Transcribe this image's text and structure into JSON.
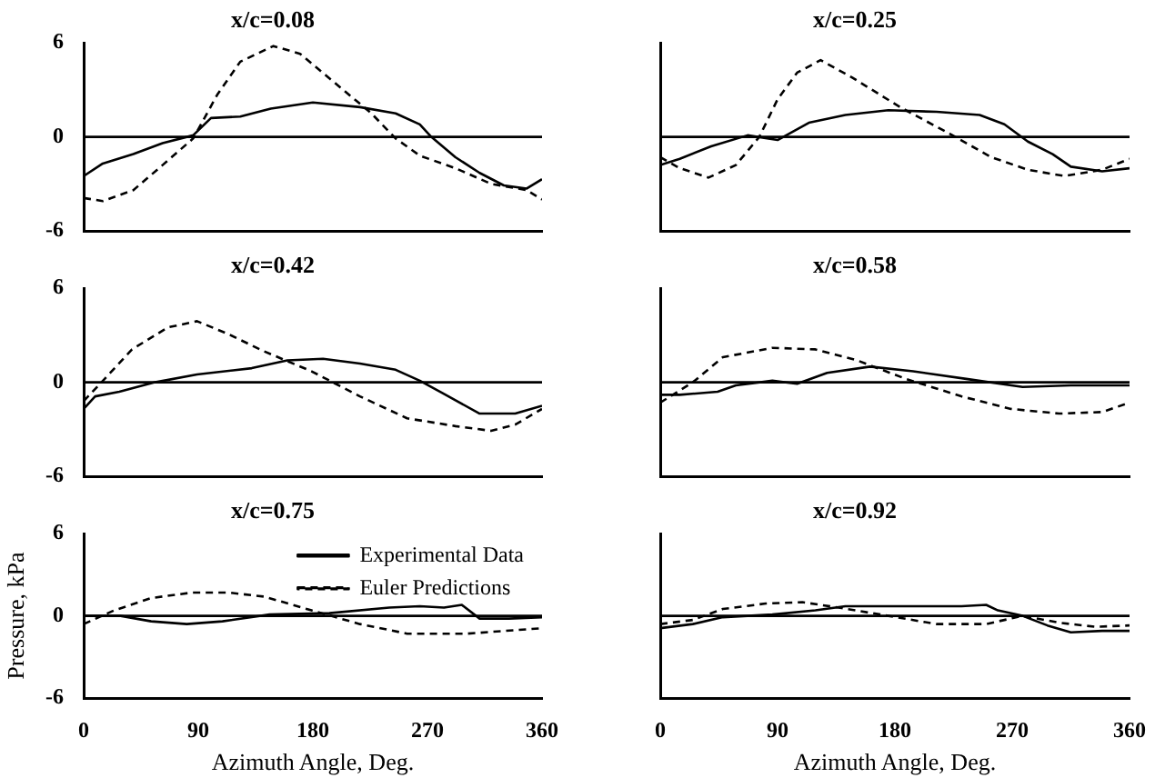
{
  "chart_data": [
    {
      "type": "line",
      "title": "x/c=0.08",
      "xlim": [
        0,
        360
      ],
      "xticks": [
        0,
        90,
        180,
        270,
        360
      ],
      "ylim": [
        -6,
        6
      ],
      "yticks": [
        -6,
        0,
        6
      ],
      "tick_labels": "y",
      "marker": "none",
      "ref_lines": [
        {
          "axis": "y",
          "value": 0,
          "color": "#000000"
        }
      ],
      "series": [
        {
          "color": "#000000",
          "line_style": "solid",
          "x": [
            0,
            15,
            39,
            62,
            86,
            100,
            123,
            147,
            180,
            217,
            245,
            264,
            273,
            292,
            311,
            330,
            348,
            360
          ],
          "values": [
            -2.5,
            -1.7,
            -1.1,
            -0.4,
            0.1,
            1.2,
            1.3,
            1.8,
            2.2,
            1.9,
            1.5,
            0.8,
            0,
            -1.3,
            -2.3,
            -3.1,
            -3.3,
            -2.7
          ]
        },
        {
          "color": "#000000",
          "line_style": "dashed",
          "x": [
            0,
            15,
            39,
            62,
            86,
            105,
            123,
            149,
            170,
            198,
            226,
            245,
            264,
            292,
            320,
            348,
            360
          ],
          "values": [
            -3.9,
            -4.1,
            -3.4,
            -1.8,
            -0.1,
            2.7,
            4.8,
            5.8,
            5.3,
            3.4,
            1.5,
            -0.1,
            -1.2,
            -2,
            -3,
            -3.4,
            -4
          ]
        }
      ]
    },
    {
      "type": "line",
      "title": "x/c=0.25",
      "xlim": [
        0,
        360
      ],
      "xticks": [
        0,
        90,
        180,
        270,
        360
      ],
      "ylim": [
        -6,
        6
      ],
      "yticks": [
        -6,
        0,
        6
      ],
      "tick_labels": false,
      "marker": "none",
      "ref_lines": [
        {
          "axis": "y",
          "value": 0,
          "color": "#000000"
        }
      ],
      "series": [
        {
          "color": "#000000",
          "line_style": "solid",
          "x": [
            0,
            15,
            39,
            67,
            90,
            114,
            142,
            175,
            212,
            245,
            264,
            282,
            301,
            315,
            339,
            360
          ],
          "values": [
            -1.8,
            -1.4,
            -0.6,
            0.1,
            -0.2,
            0.9,
            1.4,
            1.7,
            1.6,
            1.4,
            0.8,
            -0.3,
            -1.1,
            -1.9,
            -2.2,
            -2
          ]
        },
        {
          "color": "#000000",
          "line_style": "dashed",
          "x": [
            0,
            15,
            37,
            58,
            76,
            90,
            105,
            123,
            147,
            184,
            222,
            254,
            282,
            310,
            339,
            360
          ],
          "values": [
            -1.3,
            -2,
            -2.6,
            -1.8,
            0,
            2.4,
            4.1,
            4.9,
            3.8,
            1.9,
            0.2,
            -1.3,
            -2.1,
            -2.5,
            -2.1,
            -1.4
          ]
        }
      ]
    },
    {
      "type": "line",
      "title": "x/c=0.42",
      "xlim": [
        0,
        360
      ],
      "xticks": [
        0,
        90,
        180,
        270,
        360
      ],
      "ylim": [
        -6,
        6
      ],
      "yticks": [
        -6,
        0,
        6
      ],
      "tick_labels": "y",
      "marker": "none",
      "ref_lines": [
        {
          "axis": "y",
          "value": 0,
          "color": "#000000"
        }
      ],
      "series": [
        {
          "color": "#000000",
          "line_style": "solid",
          "x": [
            0,
            9,
            28,
            56,
            89,
            132,
            160,
            188,
            217,
            245,
            264,
            282,
            311,
            339,
            360
          ],
          "values": [
            -1.7,
            -0.9,
            -0.6,
            0,
            0.5,
            0.9,
            1.4,
            1.5,
            1.2,
            0.8,
            0.1,
            -0.7,
            -2,
            -2,
            -1.5
          ]
        },
        {
          "color": "#000000",
          "line_style": "dashed",
          "x": [
            0,
            14,
            38,
            66,
            89,
            113,
            141,
            179,
            217,
            254,
            292,
            320,
            339,
            360
          ],
          "values": [
            -1.2,
            0,
            2.1,
            3.5,
            3.9,
            3.1,
            2,
            0.7,
            -0.9,
            -2.3,
            -2.8,
            -3.1,
            -2.7,
            -1.7
          ]
        }
      ]
    },
    {
      "type": "line",
      "title": "x/c=0.58",
      "xlim": [
        0,
        360
      ],
      "xticks": [
        0,
        90,
        180,
        270,
        360
      ],
      "ylim": [
        -6,
        6
      ],
      "yticks": [
        -6,
        0,
        6
      ],
      "tick_labels": false,
      "marker": "none",
      "ref_lines": [
        {
          "axis": "y",
          "value": 0,
          "color": "#000000"
        }
      ],
      "series": [
        {
          "color": "#000000",
          "line_style": "solid",
          "x": [
            0,
            15,
            44,
            58,
            86,
            105,
            128,
            161,
            194,
            236,
            278,
            315,
            360
          ],
          "values": [
            -0.8,
            -0.8,
            -0.6,
            -0.2,
            0.1,
            -0.1,
            0.6,
            1,
            0.7,
            0.2,
            -0.3,
            -0.2,
            -0.2
          ]
        },
        {
          "color": "#000000",
          "line_style": "dashed",
          "x": [
            0,
            25,
            48,
            86,
            119,
            151,
            189,
            231,
            269,
            306,
            339,
            360
          ],
          "values": [
            -1.3,
            0,
            1.6,
            2.2,
            2.1,
            1.4,
            0.2,
            -0.9,
            -1.7,
            -2,
            -1.9,
            -1.3
          ]
        }
      ]
    },
    {
      "type": "line",
      "title": "x/c=0.75",
      "xlabel": "Azimuth Angle, Deg.",
      "ylabel": "Pressure, kPa",
      "legend": "top right",
      "xlim": [
        0,
        360
      ],
      "xticks": [
        0,
        90,
        180,
        270,
        360
      ],
      "ylim": [
        -6,
        6
      ],
      "yticks": [
        -6,
        0,
        6
      ],
      "marker": "none",
      "ref_lines": [
        {
          "axis": "y",
          "value": 0,
          "color": "#000000"
        }
      ],
      "series": [
        {
          "name": "Experimental Data",
          "color": "#000000",
          "line_style": "solid",
          "x": [
            0,
            29,
            53,
            81,
            109,
            146,
            193,
            240,
            264,
            283,
            297,
            311,
            334,
            360
          ],
          "values": [
            0,
            0,
            -0.4,
            -0.6,
            -0.4,
            0.1,
            0.2,
            0.6,
            0.7,
            0.6,
            0.8,
            -0.2,
            -0.2,
            -0.1
          ]
        },
        {
          "name": "Euler Predictions",
          "color": "#000000",
          "line_style": "dashed",
          "x": [
            0,
            24,
            53,
            85,
            114,
            142,
            179,
            217,
            254,
            301,
            360
          ],
          "values": [
            -0.6,
            0.4,
            1.3,
            1.7,
            1.7,
            1.4,
            0.4,
            -0.6,
            -1.3,
            -1.3,
            -0.9
          ]
        }
      ]
    },
    {
      "type": "line",
      "title": "x/c=0.92",
      "xlabel": "Azimuth Angle, Deg.",
      "xlim": [
        0,
        360
      ],
      "xticks": [
        0,
        90,
        180,
        270,
        360
      ],
      "ylim": [
        -6,
        6
      ],
      "yticks": [
        -6,
        0,
        6
      ],
      "tick_labels": "x",
      "marker": "none",
      "ref_lines": [
        {
          "axis": "y",
          "value": 0,
          "color": "#000000"
        }
      ],
      "series": [
        {
          "color": "#000000",
          "line_style": "solid",
          "x": [
            0,
            25,
            48,
            86,
            119,
            142,
            189,
            231,
            250,
            259,
            278,
            297,
            315,
            339,
            360
          ],
          "values": [
            -0.9,
            -0.6,
            -0.1,
            0.1,
            0.4,
            0.7,
            0.7,
            0.7,
            0.8,
            0.4,
            0,
            -0.7,
            -1.2,
            -1.1,
            -1.1
          ]
        },
        {
          "color": "#000000",
          "line_style": "dashed",
          "x": [
            0,
            25,
            48,
            81,
            109,
            137,
            175,
            212,
            250,
            278,
            306,
            334,
            360
          ],
          "values": [
            -0.6,
            -0.3,
            0.5,
            0.9,
            1,
            0.6,
            0,
            -0.6,
            -0.6,
            0,
            -0.5,
            -0.8,
            -0.7
          ]
        }
      ]
    }
  ]
}
